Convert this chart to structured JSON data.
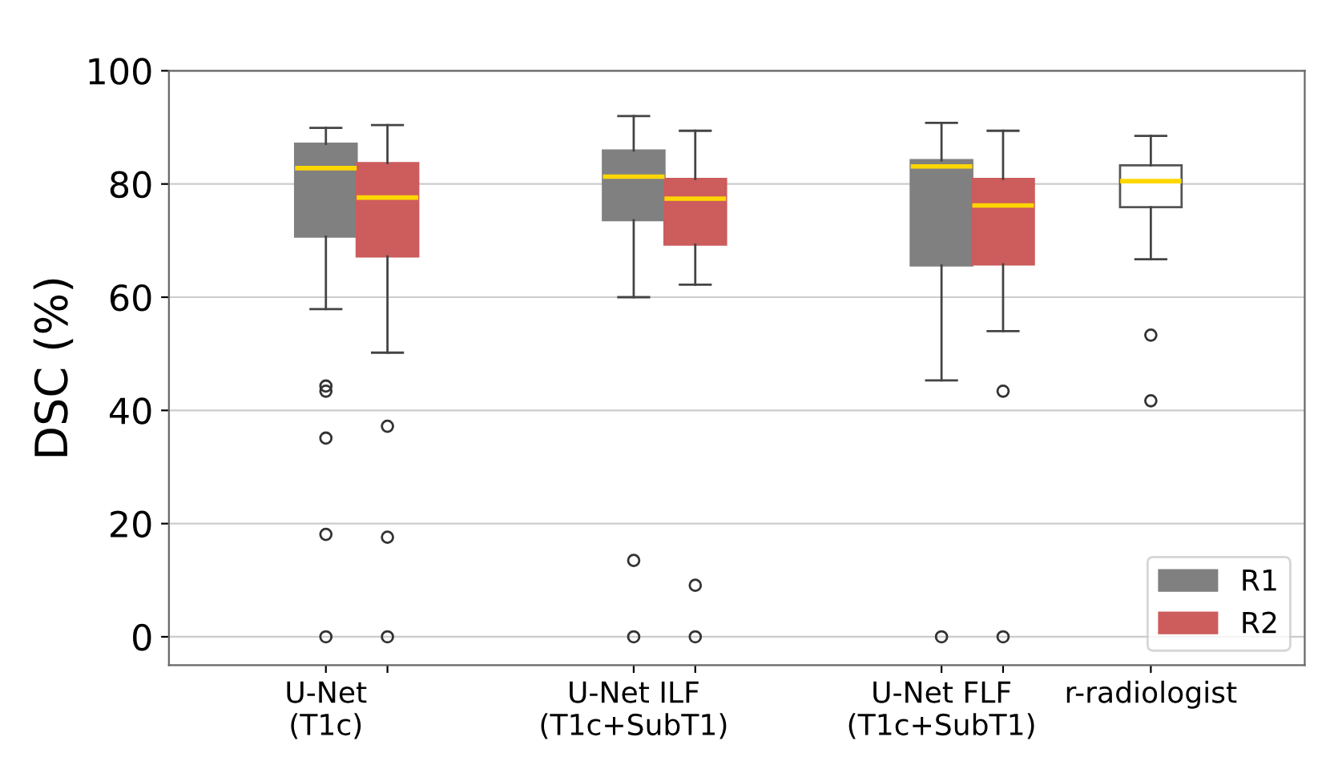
{
  "chart_data": {
    "type": "box",
    "ylabel": "DSC (%)",
    "categories": [
      "U-Net\n(T1c)",
      "U-Net ILF\n(T1c+SubT1)",
      "U-Net FLF\n(T1c+SubT1)",
      "r-radiologist"
    ],
    "series": [
      {
        "name": "R1",
        "color": "#808080",
        "boxes": [
          {
            "low": 57.9,
            "q1": 70.7,
            "median": 82.8,
            "q3": 87.1,
            "high": 89.9,
            "outliers": [
              44.3,
              43.4,
              35.1,
              18.1,
              0
            ]
          },
          {
            "low": 60.0,
            "q1": 73.6,
            "median": 81.3,
            "q3": 85.9,
            "high": 92.0,
            "outliers": [
              13.5,
              0
            ]
          },
          {
            "low": 45.3,
            "q1": 65.6,
            "median": 83.1,
            "q3": 84.2,
            "high": 90.8,
            "outliers": [
              0
            ]
          },
          null
        ]
      },
      {
        "name": "R2",
        "color": "#cd5c5c",
        "boxes": [
          {
            "low": 50.2,
            "q1": 67.2,
            "median": 77.6,
            "q3": 83.7,
            "high": 90.4,
            "outliers": [
              37.2,
              17.6,
              0
            ]
          },
          {
            "low": 62.2,
            "q1": 69.3,
            "median": 77.4,
            "q3": 80.9,
            "high": 89.4,
            "outliers": [
              9.1,
              0
            ]
          },
          {
            "low": 54.0,
            "q1": 65.8,
            "median": 76.2,
            "q3": 80.9,
            "high": 89.4,
            "outliers": [
              43.4,
              0
            ]
          },
          null
        ]
      },
      {
        "color": "#ffffff",
        "boxes": [
          null,
          null,
          null,
          {
            "low": 66.7,
            "q1": 75.9,
            "median": 80.5,
            "q3": 83.3,
            "high": 88.5,
            "outliers": [
              53.3,
              41.7
            ]
          }
        ]
      }
    ],
    "ylim": [
      -5,
      100
    ],
    "yticks": [
      0,
      20,
      40,
      60,
      80,
      100
    ],
    "grid": "y",
    "legend": "bottom right"
  }
}
